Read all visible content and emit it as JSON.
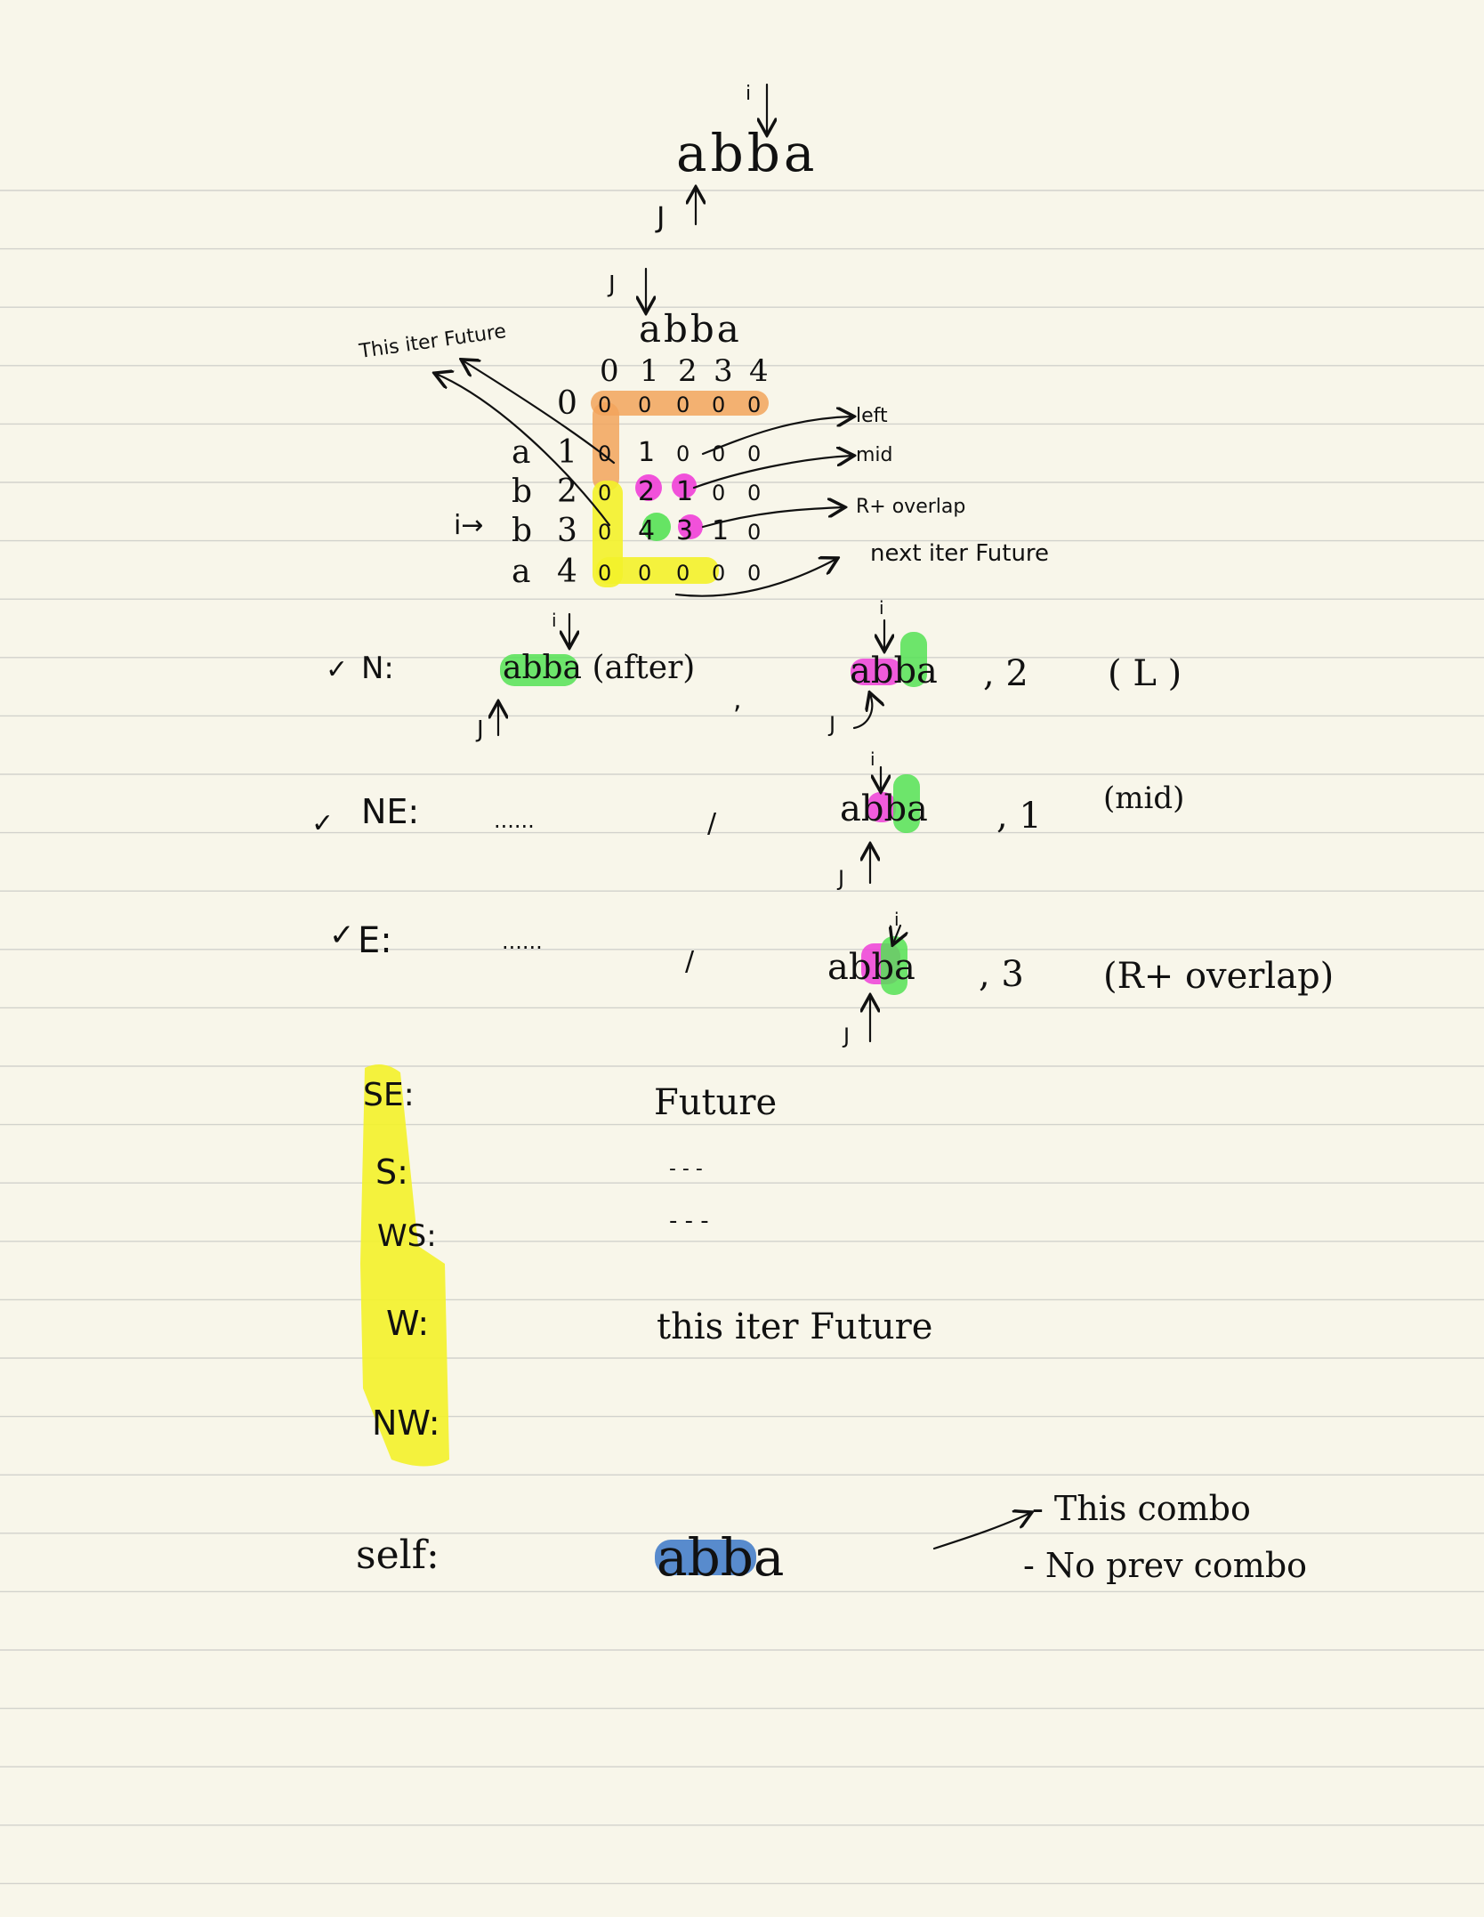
{
  "top": {
    "word": "abba",
    "i_label": "i",
    "j_label": "J"
  },
  "table": {
    "j_label": "J",
    "header_word": "abba",
    "col_indices": [
      "0",
      "1",
      "2",
      "3",
      "4"
    ],
    "row_letters": [
      "",
      "a",
      "b",
      "b",
      "a"
    ],
    "row_indices": [
      "0",
      "1",
      "2",
      "3",
      "4"
    ],
    "i_arrow_label": "i→",
    "rows": [
      [
        "0",
        "0",
        "0",
        "0",
        "0"
      ],
      [
        "0",
        "1",
        "0",
        "0",
        "0"
      ],
      [
        "0",
        "2",
        "1",
        "0",
        "0"
      ],
      [
        "0",
        "4",
        "3",
        "1",
        "0"
      ],
      [
        "0",
        "0",
        "0",
        "0",
        "0"
      ]
    ],
    "annotations": {
      "this_iter": "This iter Future",
      "left": "left",
      "mid": "mid",
      "rt_overlap": "R+ overlap",
      "next_iter": "next iter Future"
    }
  },
  "directions": [
    {
      "check": "✓",
      "label": "N:",
      "left_expr": "abba (after)",
      "sep": ",",
      "right_word": "abba",
      "right_value": ", 2",
      "note": "( L )"
    },
    {
      "check": "✓",
      "label": "NE:",
      "left_expr": "......",
      "sep": "/",
      "right_word": "abba",
      "right_value": ", 1",
      "note": "(mid)"
    },
    {
      "check": "✓",
      "label": "E:",
      "left_expr": "......",
      "sep": "/",
      "right_word": "abba",
      "right_value": ", 3",
      "note": "(R+ overlap)"
    }
  ],
  "future_dirs": [
    {
      "label": "SE:",
      "value": "Future"
    },
    {
      "label": "S:",
      "value": "- - -"
    },
    {
      "label": "WS:",
      "value": "- - -"
    },
    {
      "label": "W:",
      "value": "this iter Future"
    },
    {
      "label": "NW:",
      "value": ""
    }
  ],
  "self_row": {
    "label": "self:",
    "word": "abba",
    "note1": "- This combo",
    "note2": "- No prev combo"
  },
  "colors": {
    "paper": "#f8f6ea",
    "rule": "#d2d2cc",
    "orange": "#f2a45c",
    "yellow": "#f3f22a",
    "pink": "#ef3fd8",
    "green": "#55e255",
    "blue": "#3c78c8"
  }
}
